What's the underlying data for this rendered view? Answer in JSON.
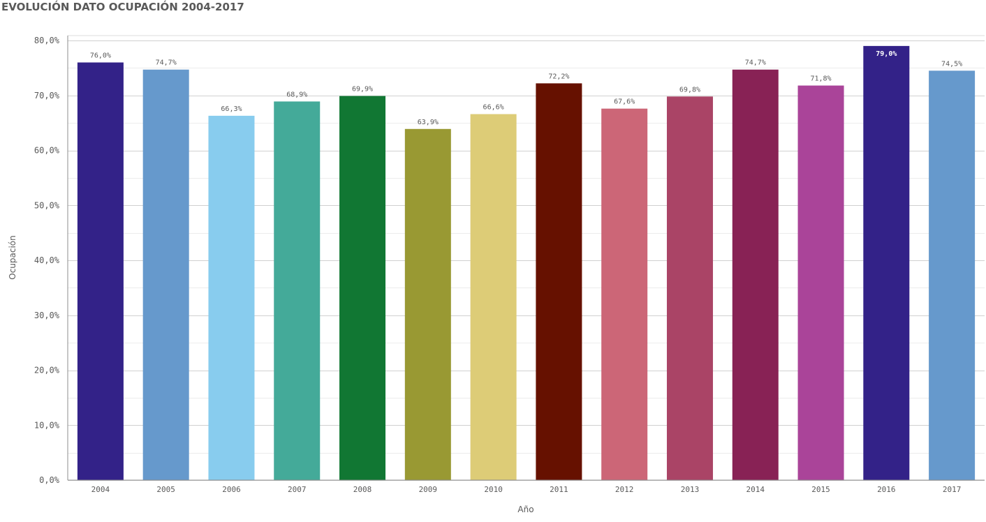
{
  "chart_data": {
    "type": "bar",
    "title": "EVOLUCIÓN DATO OCUPACIÓN 2004-2017",
    "xlabel": "Año",
    "ylabel": "Ocupación",
    "ylim": [
      0,
      80
    ],
    "yticks": [
      {
        "value": 0,
        "label": "0,0%"
      },
      {
        "value": 10,
        "label": "10,0%"
      },
      {
        "value": 20,
        "label": "20,0%"
      },
      {
        "value": 30,
        "label": "30,0%"
      },
      {
        "value": 40,
        "label": "40,0%"
      },
      {
        "value": 50,
        "label": "50,0%"
      },
      {
        "value": 60,
        "label": "60,0%"
      },
      {
        "value": 70,
        "label": "70,0%"
      },
      {
        "value": 80,
        "label": "80,0%"
      }
    ],
    "grid": true,
    "legend": "none",
    "categories": [
      "2004",
      "2005",
      "2006",
      "2007",
      "2008",
      "2009",
      "2010",
      "2011",
      "2012",
      "2013",
      "2014",
      "2015",
      "2016",
      "2017"
    ],
    "values": [
      76.0,
      74.7,
      66.3,
      68.9,
      69.9,
      63.9,
      66.6,
      72.2,
      67.6,
      69.8,
      74.7,
      71.8,
      79.0,
      74.5
    ],
    "data_labels": [
      "76,0%",
      "74,7%",
      "66,3%",
      "68,9%",
      "69,9%",
      "63,9%",
      "66,6%",
      "72,2%",
      "67,6%",
      "69,8%",
      "74,7%",
      "71,8%",
      "79,0%",
      "74,5%"
    ],
    "colors": [
      "#332288",
      "#6699cc",
      "#88ccee",
      "#44aa99",
      "#117733",
      "#999933",
      "#ddcc77",
      "#661100",
      "#cc6677",
      "#aa4466",
      "#882255",
      "#aa4499",
      "#332288",
      "#6699cc"
    ],
    "label_inside": [
      false,
      false,
      false,
      false,
      false,
      false,
      false,
      false,
      false,
      false,
      false,
      false,
      true,
      false
    ]
  }
}
